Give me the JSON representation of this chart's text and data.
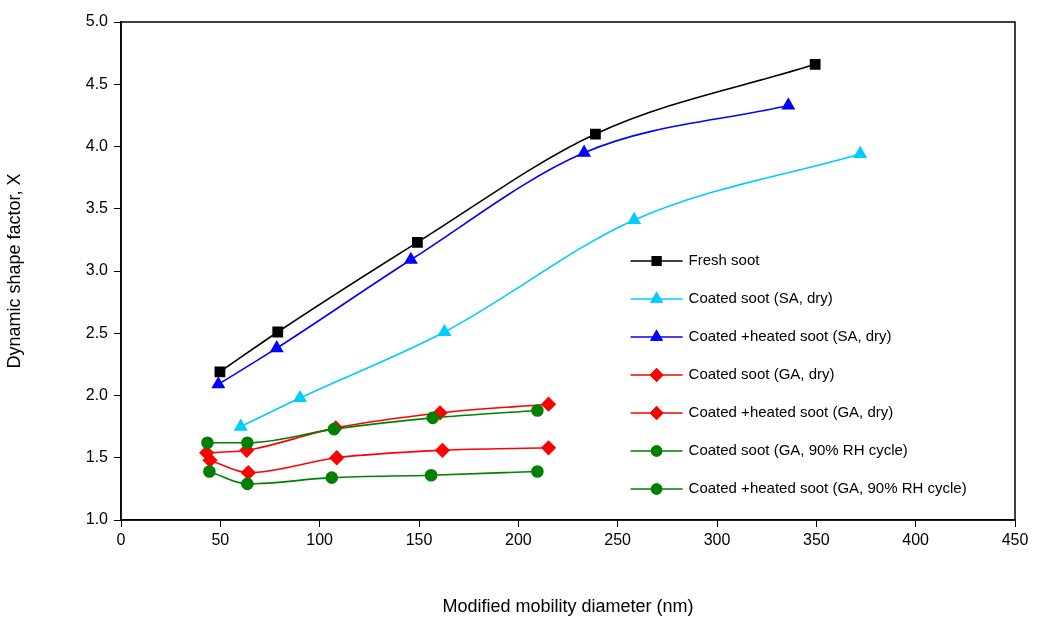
{
  "chart_data": {
    "type": "line",
    "xlabel": "Modified mobility diameter (nm)",
    "ylabel": "Dynamic shape factor, X",
    "xlim": [
      0,
      450
    ],
    "xticks": [
      0,
      50,
      100,
      150,
      200,
      250,
      300,
      350,
      400,
      450
    ],
    "ylim": [
      1,
      5
    ],
    "yticks": [
      {
        "value": 1,
        "label": "1.0"
      },
      {
        "value": 1.5,
        "label": "1.5"
      },
      {
        "value": 2,
        "label": "2.0"
      },
      {
        "value": 2.5,
        "label": "2.5"
      },
      {
        "value": 3,
        "label": "3.0"
      },
      {
        "value": 3.5,
        "label": "3.5"
      },
      {
        "value": 4,
        "label": "4.0"
      },
      {
        "value": 4.5,
        "label": "4.5"
      },
      {
        "value": 5,
        "label": "5.0"
      }
    ],
    "grid": false,
    "legend": "right",
    "line_style": "solid",
    "series": [
      {
        "name": "Fresh soot",
        "color": "#000000",
        "marker": "square",
        "x": [
          49.8,
          78.9,
          149.2,
          238.8,
          349.4
        ],
        "values": [
          2.19,
          2.51,
          3.23,
          4.1,
          4.66
        ]
      },
      {
        "name": "Coated soot (SA, dry)",
        "color": "#00ccff",
        "marker": "triangle",
        "x": [
          60.3,
          90.1,
          162.8,
          258.3,
          372.1
        ],
        "values": [
          1.75,
          1.98,
          2.51,
          3.41,
          3.94
        ]
      },
      {
        "name": "Coated +heated soot (SA, dry)",
        "color": "#0000ff",
        "marker": "triangle",
        "x": [
          49.0,
          78.4,
          145.9,
          233.1,
          335.9
        ],
        "values": [
          2.09,
          2.38,
          3.09,
          3.95,
          4.33
        ]
      },
      {
        "name": "Coated soot (GA, dry)",
        "color": "#ff0000",
        "marker": "diamond",
        "x": [
          44.8,
          64.1,
          108.6,
          161.8,
          215.2
        ],
        "values": [
          1.48,
          1.38,
          1.5,
          1.56,
          1.58
        ]
      },
      {
        "name": "Coated +heated soot (GA, dry)",
        "color": "#ff0000",
        "marker": "diamond",
        "x": [
          43.1,
          63.3,
          108.1,
          160.6,
          215.2
        ],
        "values": [
          1.54,
          1.56,
          1.74,
          1.86,
          1.93
        ]
      },
      {
        "name": "Coated soot (GA, 90% RH cycle)",
        "color": "#008000",
        "marker": "circle",
        "x": [
          44.5,
          63.6,
          106.1,
          156.1,
          209.6
        ],
        "values": [
          1.39,
          1.29,
          1.34,
          1.36,
          1.39
        ]
      },
      {
        "name": "Coated +heated soot (GA, 90% RH cycle)",
        "color": "#008000",
        "marker": "circle",
        "x": [
          43.5,
          63.6,
          107.2,
          156.9,
          209.6
        ],
        "values": [
          1.62,
          1.62,
          1.73,
          1.82,
          1.88
        ]
      }
    ]
  }
}
